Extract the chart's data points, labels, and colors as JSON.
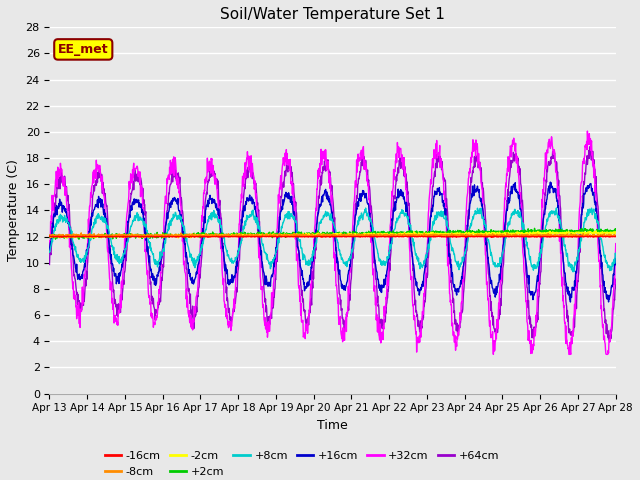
{
  "title": "Soil/Water Temperature Set 1",
  "xlabel": "Time",
  "ylabel": "Temperature (C)",
  "ylim": [
    0,
    28
  ],
  "yticks": [
    0,
    2,
    4,
    6,
    8,
    10,
    12,
    14,
    16,
    18,
    20,
    22,
    24,
    26,
    28
  ],
  "x_labels": [
    "Apr 13",
    "Apr 14",
    "Apr 15",
    "Apr 16",
    "Apr 17",
    "Apr 18",
    "Apr 19",
    "Apr 20",
    "Apr 21",
    "Apr 22",
    "Apr 23",
    "Apr 24",
    "Apr 25",
    "Apr 26",
    "Apr 27",
    "Apr 28"
  ],
  "annotation_text": "EE_met",
  "annotation_color": "#8B0000",
  "annotation_bg": "#FFFF00",
  "bg_color": "#E8E8E8",
  "plot_bg": "#E8E8E8",
  "base_temp": 12.0,
  "n_days": 15,
  "series_colors": [
    "#FF0000",
    "#FF8C00",
    "#FFFF00",
    "#00CC00",
    "#00CCCC",
    "#0000CC",
    "#FF00FF",
    "#9900CC"
  ],
  "series_labels": [
    "-16cm",
    "-8cm",
    "-2cm",
    "+2cm",
    "+8cm",
    "+16cm",
    "+32cm",
    "+64cm"
  ]
}
